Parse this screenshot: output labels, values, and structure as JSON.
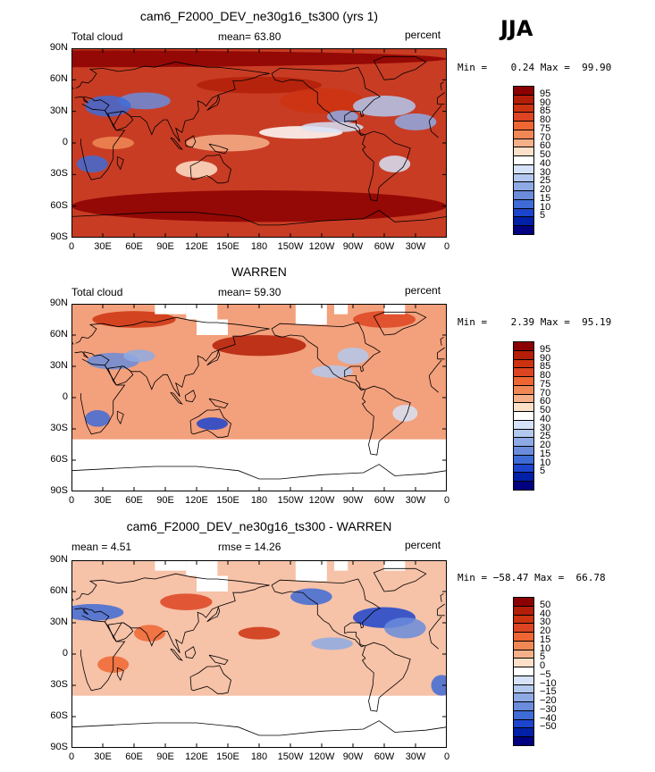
{
  "season": "JJA",
  "panels": [
    {
      "title": "cam6_F2000_DEV_ne30g16_ts300 (yrs 1)",
      "left_label": "Total cloud",
      "mid_label": "mean=  63.80",
      "right_label": "percent",
      "minmax": "Min =    0.24 Max =  99.90",
      "colorbar_labels": [
        "95",
        "90",
        "85",
        "80",
        "75",
        "70",
        "60",
        "50",
        "40",
        "30",
        "25",
        "20",
        "15",
        "10",
        "5"
      ],
      "colorbar_colors": [
        "#8b0000",
        "#b31e08",
        "#cc3311",
        "#dd4422",
        "#ee6633",
        "#f08855",
        "#f5b08a",
        "#fde0c8",
        "#ffffff",
        "#d6e2f7",
        "#b3c8ee",
        "#8eaae4",
        "#6a8cdb",
        "#3f6bd6",
        "#1c44cc",
        "#0020a8",
        "#000080"
      ],
      "background": "#c83c24"
    },
    {
      "title": "WARREN",
      "left_label": "Total cloud",
      "mid_label": "mean=  59.30",
      "right_label": "percent",
      "minmax": "Min =    2.39 Max =  95.19",
      "colorbar_labels": [
        "95",
        "90",
        "85",
        "80",
        "75",
        "70",
        "60",
        "50",
        "40",
        "30",
        "25",
        "20",
        "15",
        "10",
        "5"
      ],
      "colorbar_colors": [
        "#8b0000",
        "#b31e08",
        "#cc3311",
        "#dd4422",
        "#ee6633",
        "#f08855",
        "#f5b08a",
        "#fde0c8",
        "#ffffff",
        "#d6e2f7",
        "#b3c8ee",
        "#8eaae4",
        "#6a8cdb",
        "#3f6bd6",
        "#1c44cc",
        "#0020a8",
        "#000080"
      ],
      "background": "#f3a07c"
    },
    {
      "title": "cam6_F2000_DEV_ne30g16_ts300 - WARREN",
      "left_label": "mean =    4.51",
      "mid_label": "rmse =   14.26",
      "right_label": "percent",
      "minmax": "Min = −58.47 Max =  66.78",
      "colorbar_labels": [
        "50",
        "40",
        "30",
        "20",
        "15",
        "10",
        "5",
        "0",
        "−5",
        "−10",
        "−15",
        "−20",
        "−30",
        "−40",
        "−50"
      ],
      "colorbar_colors": [
        "#8b0000",
        "#b31e08",
        "#cc3311",
        "#dd4422",
        "#ee6633",
        "#f08855",
        "#f5b08a",
        "#fde0c8",
        "#ffffff",
        "#d6e2f7",
        "#b3c8ee",
        "#8eaae4",
        "#6a8cdb",
        "#3f6bd6",
        "#1c44cc",
        "#0020a8",
        "#000080"
      ],
      "background": "#f6c2a8"
    }
  ],
  "lat_ticks": [
    "90N",
    "60N",
    "30N",
    "0",
    "30S",
    "60S",
    "90S"
  ],
  "lon_ticks": [
    "0",
    "30E",
    "60E",
    "90E",
    "120E",
    "150E",
    "180",
    "150W",
    "120W",
    "90W",
    "60W",
    "30W",
    "0"
  ]
}
